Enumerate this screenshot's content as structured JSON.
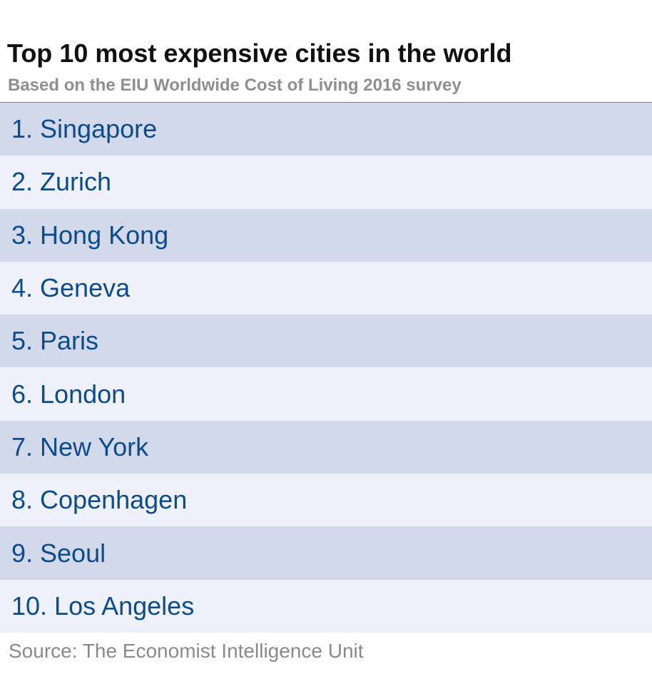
{
  "header": {
    "title": "Top 10 most expensive cities in the world",
    "subtitle": "Based on the EIU Worldwide Cost of Living 2016 survey"
  },
  "chart_data": {
    "type": "table",
    "title": "Top 10 most expensive cities in the world",
    "subtitle": "Based on the EIU Worldwide Cost of Living 2016 survey",
    "rows": [
      "1. Singapore",
      "2. Zurich",
      "3. Hong Kong",
      "4. Geneva",
      "5. Paris",
      "6. London",
      "7. New York",
      "8. Copenhagen",
      "9. Seoul",
      "10. Los Angeles"
    ],
    "source": "Source: The Economist Intelligence Unit"
  },
  "footer": {
    "source": "Source: The Economist Intelligence Unit"
  },
  "colors": {
    "row_dark": "#d2d9eb",
    "row_light": "#eef1f9",
    "label_text": "#0d4b8c",
    "title_text": "#111111",
    "subtitle_text": "#8f8f8f",
    "source_text": "#8a8a8a"
  }
}
